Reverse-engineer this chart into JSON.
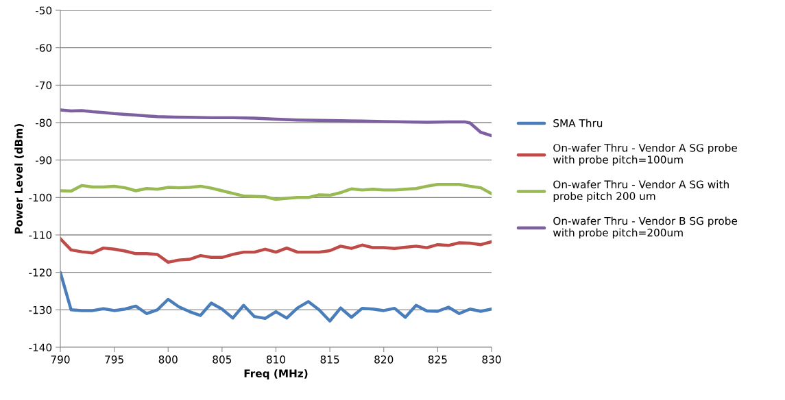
{
  "chart_data": {
    "type": "line",
    "xlabel": "Freq (MHz)",
    "ylabel": "Power Level (dBm)",
    "x": [
      790,
      791,
      792,
      793,
      794,
      795,
      796,
      797,
      798,
      799,
      800,
      801,
      802,
      803,
      804,
      805,
      806,
      807,
      808,
      809,
      810,
      811,
      812,
      813,
      814,
      815,
      816,
      817,
      818,
      819,
      820,
      821,
      822,
      823,
      824,
      825,
      826,
      827,
      828,
      829,
      830
    ],
    "series": [
      {
        "name": "SMA Thru",
        "color": "#4a7ebb",
        "values": [
          -120,
          -130,
          -130.2,
          -130.2,
          -129.7,
          -130.2,
          -129.8,
          -129,
          -131,
          -130,
          -127.2,
          -129.2,
          -130.5,
          -131.5,
          -128.2,
          -129.8,
          -132.2,
          -128.8,
          -131.8,
          -132.3,
          -130.5,
          -132.2,
          -129.5,
          -127.8,
          -130,
          -133,
          -129.5,
          -132,
          -129.6,
          -129.8,
          -130.2,
          -129.6,
          -132,
          -128.8,
          -130.3,
          -130.4,
          -129.3,
          -131,
          -129.8,
          -130.4,
          -129.8
        ]
      },
      {
        "name": "On-wafer Thru - Vendor A SG probe\nwith probe pitch=100um",
        "color": "#be4b48",
        "values": [
          -111,
          -114,
          -114.5,
          -114.8,
          -113.5,
          -113.8,
          -114.3,
          -115,
          -115,
          -115.2,
          -117.3,
          -116.7,
          -116.5,
          -115.5,
          -116,
          -116,
          -115.2,
          -114.6,
          -114.6,
          -113.8,
          -114.6,
          -113.5,
          -114.6,
          -114.6,
          -114.6,
          -114.2,
          -113,
          -113.6,
          -112.7,
          -113.4,
          -113.4,
          -113.6,
          -113.3,
          -113,
          -113.4,
          -112.6,
          -112.8,
          -112.1,
          -112.2,
          -112.6,
          -111.8
        ]
      },
      {
        "name": "On-wafer Thru - Vendor A SG with\nprobe pitch 200 um",
        "color": "#98b954",
        "values": [
          -98.2,
          -98.3,
          -96.8,
          -97.2,
          -97.2,
          -97,
          -97.4,
          -98.2,
          -97.6,
          -97.8,
          -97.3,
          -97.4,
          -97.3,
          -97,
          -97.5,
          -98.2,
          -98.9,
          -99.6,
          -99.7,
          -99.8,
          -100.5,
          -100.2,
          -100,
          -100,
          -99.3,
          -99.4,
          -98.7,
          -97.7,
          -98,
          -97.8,
          -98,
          -98,
          -97.8,
          -97.6,
          -97,
          -96.5,
          -96.5,
          -96.5,
          -97,
          -97.4,
          -99
        ]
      },
      {
        "name": "On-wafer Thru - Vendor B SG probe\nwith probe pitch=200um",
        "color": "#7d60a0",
        "x": [
          790,
          791,
          792,
          793,
          794,
          795,
          796,
          797,
          798,
          799,
          800,
          802,
          804,
          806,
          808,
          810,
          812,
          814,
          816,
          818,
          820,
          822,
          824,
          826,
          827.5,
          828,
          829,
          830
        ],
        "values": [
          -76.6,
          -76.9,
          -76.8,
          -77.1,
          -77.3,
          -77.6,
          -77.8,
          -78,
          -78.2,
          -78.4,
          -78.5,
          -78.6,
          -78.7,
          -78.7,
          -78.8,
          -79.1,
          -79.3,
          -79.4,
          -79.5,
          -79.6,
          -79.7,
          -79.8,
          -79.9,
          -79.8,
          -79.8,
          -80.1,
          -82.6,
          -83.5
        ]
      }
    ],
    "xlim": [
      790,
      830
    ],
    "xticks": [
      790,
      795,
      800,
      805,
      810,
      815,
      820,
      825,
      830
    ],
    "ylim": [
      -140,
      -50
    ],
    "yticks": [
      -140,
      -130,
      -120,
      -110,
      -100,
      -90,
      -80,
      -70,
      -60,
      -50
    ],
    "grid": "y",
    "legend": "right",
    "marker": "none",
    "line_style": "solid"
  }
}
